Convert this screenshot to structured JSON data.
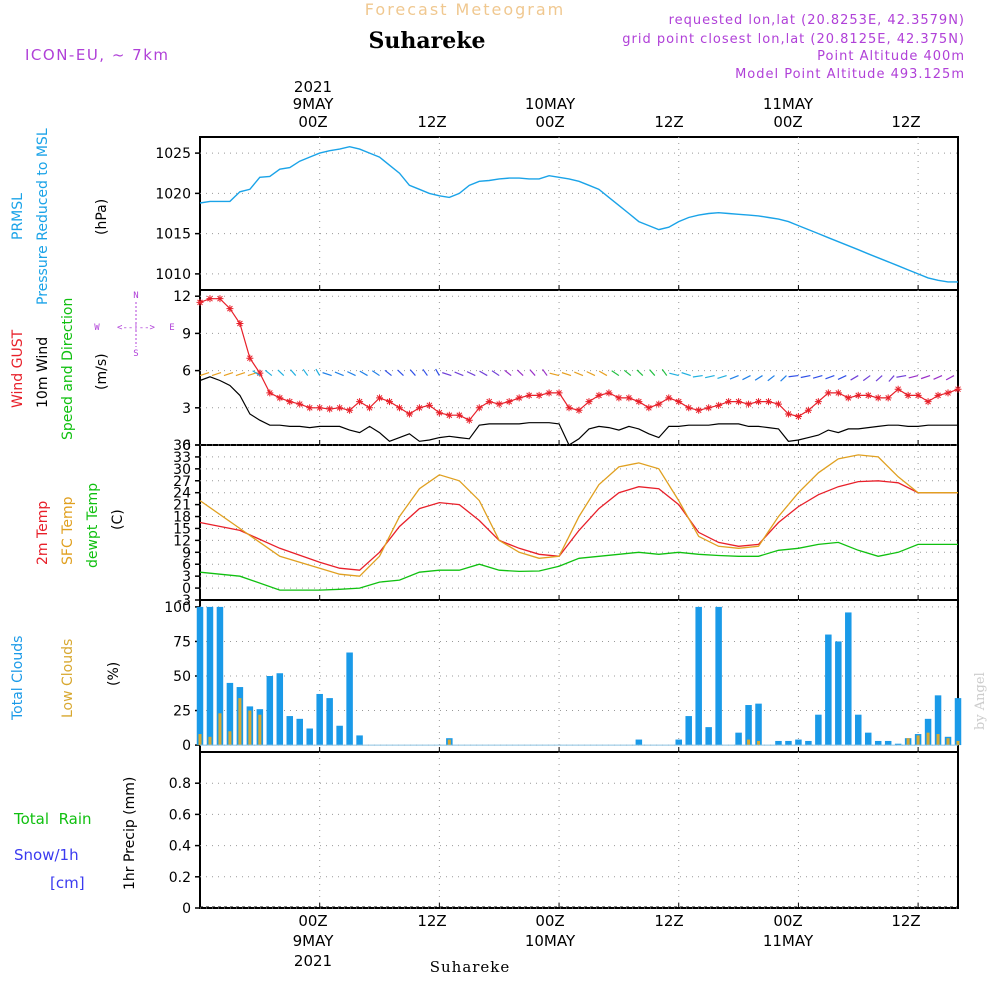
{
  "header": {
    "title": "Forecast Meteogram",
    "location": "Suhareke",
    "model": "ICON-EU, ~ 7km",
    "requested": "requested lon,lat (20.8253E, 42.3579N)",
    "grid": "grid point closest lon,lat (20.8125E, 42.375N)",
    "point_alt": "Point Altitude 400m",
    "model_alt": "Model Point Altitude 493.125m",
    "footer": "Suhareke",
    "credit": "by Angel"
  },
  "time_axis": {
    "year": "2021",
    "top_dates": [
      "9MAY",
      "10MAY",
      "11MAY"
    ],
    "top_hours": [
      "00Z",
      "12Z",
      "00Z",
      "12Z",
      "00Z",
      "12Z"
    ],
    "bottom_hours": [
      "00Z",
      "12Z",
      "00Z",
      "12Z",
      "00Z",
      "12Z"
    ],
    "bottom_dates": [
      "9MAY",
      "10MAY",
      "11MAY"
    ],
    "unit": "hours since 2021-05-08 12Z",
    "range": [
      0,
      76
    ]
  },
  "panels": {
    "pressure": {
      "label_a": "PRMSL",
      "label_b": "Pressure Reduced to MSL",
      "unit": "(hPa)"
    },
    "wind": {
      "label_gust": "Wind GUST",
      "label_10m": "10m Wind",
      "label_dir": "Speed and Direction",
      "unit": "(m/s)",
      "compass": {
        "n": "N",
        "s": "S",
        "w": "W",
        "e": "E",
        "arrow": "<--|-->"
      }
    },
    "temp": {
      "label_2m": "2m Temp",
      "label_sfc": "SFC Temp",
      "label_dew": "dewpt Temp",
      "unit": "(C)"
    },
    "clouds": {
      "label_total": "Total Clouds",
      "label_low": "Low Clouds",
      "unit": "(%)"
    },
    "precip": {
      "label_rain": "Total  Rain",
      "label_snow": "Snow/1h",
      "label_cm": "[cm]",
      "label_axis": "1hr Precip (mm)"
    }
  },
  "colors": {
    "pressure": "#1aa3e8",
    "gust": "#e8202a",
    "wind10m": "#000000",
    "temp2m": "#e8202a",
    "sfc": "#e0a020",
    "dew": "#10c010",
    "total_cloud": "#1a9ae8",
    "low_cloud": "#d8a830",
    "header_title": "#f0c890",
    "purple": "#b040d8",
    "rain": "#10c010",
    "snow": "#3a3af0"
  },
  "chart_data": [
    {
      "type": "line",
      "name": "pressure",
      "ylim": [
        1008,
        1027
      ],
      "yticks": [
        1010,
        1015,
        1020,
        1025
      ],
      "x": [
        0,
        1,
        2,
        3,
        4,
        5,
        6,
        7,
        8,
        9,
        10,
        11,
        12,
        13,
        14,
        15,
        16,
        17,
        18,
        19,
        20,
        21,
        22,
        23,
        24,
        25,
        26,
        27,
        28,
        29,
        30,
        31,
        32,
        33,
        34,
        35,
        36,
        37,
        38,
        39,
        40,
        41,
        42,
        43,
        44,
        45,
        46,
        47,
        48,
        49,
        50,
        51,
        52,
        53,
        54,
        55,
        56,
        57,
        58,
        59,
        60,
        61,
        62,
        63,
        64,
        65,
        66,
        67,
        68,
        69,
        70,
        71,
        72,
        73,
        74,
        75,
        76
      ],
      "series": [
        {
          "values": [
            1018.8,
            1019.0,
            1019.0,
            1019.0,
            1020.2,
            1020.5,
            1022.0,
            1022.1,
            1023.0,
            1023.2,
            1024.0,
            1024.5,
            1025.0,
            1025.3,
            1025.5,
            1025.8,
            1025.5,
            1025.0,
            1024.5,
            1023.5,
            1022.5,
            1021.0,
            1020.5,
            1020.0,
            1019.7,
            1019.5,
            1020.0,
            1021.0,
            1021.5,
            1021.6,
            1021.8,
            1021.9,
            1021.9,
            1021.8,
            1021.8,
            1022.2,
            1022.0,
            1021.8,
            1021.5,
            1021.0,
            1020.5,
            1019.5,
            1018.5,
            1017.5,
            1016.5,
            1016.0,
            1015.5,
            1015.8,
            1016.5,
            1017.0,
            1017.3,
            1017.5,
            1017.6,
            1017.5,
            1017.4,
            1017.3,
            1017.2,
            1017.0,
            1016.8,
            1016.5,
            1016.0,
            1015.5,
            1015.0,
            1014.5,
            1014.0,
            1013.5,
            1013.0,
            1012.5,
            1012.0,
            1011.5,
            1011.0,
            1010.5,
            1010.0,
            1009.5,
            1009.2,
            1009.0,
            1009.0
          ]
        }
      ]
    },
    {
      "type": "line",
      "name": "wind",
      "ylim": [
        0,
        12.5
      ],
      "yticks": [
        0,
        3,
        6,
        9,
        12
      ],
      "x": [
        0,
        1,
        2,
        3,
        4,
        5,
        6,
        7,
        8,
        9,
        10,
        11,
        12,
        13,
        14,
        15,
        16,
        17,
        18,
        19,
        20,
        21,
        22,
        23,
        24,
        25,
        26,
        27,
        28,
        29,
        30,
        31,
        32,
        33,
        34,
        35,
        36,
        37,
        38,
        39,
        40,
        41,
        42,
        43,
        44,
        45,
        46,
        47,
        48,
        49,
        50,
        51,
        52,
        53,
        54,
        55,
        56,
        57,
        58,
        59,
        60,
        61,
        62,
        63,
        64,
        65,
        66,
        67,
        68,
        69,
        70,
        71,
        72,
        73,
        74,
        75,
        76
      ],
      "series": [
        {
          "name": "Wind GUST",
          "values": [
            11.5,
            11.8,
            11.8,
            11.0,
            9.8,
            7.0,
            5.8,
            4.2,
            3.8,
            3.5,
            3.3,
            3.0,
            3.0,
            2.9,
            3.0,
            2.8,
            3.5,
            3.0,
            3.8,
            3.5,
            3.0,
            2.5,
            3.0,
            3.2,
            2.6,
            2.4,
            2.4,
            2.0,
            3.0,
            3.5,
            3.3,
            3.5,
            3.8,
            4.0,
            4.0,
            4.2,
            4.2,
            3.0,
            2.8,
            3.5,
            4.0,
            4.2,
            3.8,
            3.8,
            3.5,
            3.0,
            3.3,
            3.8,
            3.5,
            3.0,
            2.8,
            3.0,
            3.2,
            3.5,
            3.5,
            3.3,
            3.5,
            3.5,
            3.3,
            2.5,
            2.3,
            2.8,
            3.5,
            4.2,
            4.2,
            3.8,
            4.0,
            4.0,
            3.8,
            3.8,
            4.5,
            4.0,
            4.0,
            3.5,
            4.0,
            4.2,
            4.5
          ]
        },
        {
          "name": "10m Wind",
          "values": [
            5.2,
            5.5,
            5.2,
            4.8,
            4.0,
            2.5,
            2.0,
            1.6,
            1.6,
            1.5,
            1.5,
            1.4,
            1.5,
            1.5,
            1.5,
            1.2,
            1.0,
            1.5,
            1.0,
            0.3,
            0.6,
            0.9,
            0.3,
            0.4,
            0.6,
            0.7,
            0.6,
            0.5,
            1.6,
            1.7,
            1.7,
            1.7,
            1.7,
            1.8,
            1.8,
            1.8,
            1.7,
            0.0,
            0.5,
            1.3,
            1.5,
            1.4,
            1.2,
            1.5,
            1.3,
            0.9,
            0.6,
            1.5,
            1.5,
            1.6,
            1.6,
            1.6,
            1.7,
            1.7,
            1.7,
            1.5,
            1.5,
            1.4,
            1.3,
            0.3,
            0.4,
            0.6,
            0.8,
            1.2,
            1.0,
            1.3,
            1.3,
            1.4,
            1.5,
            1.6,
            1.6,
            1.5,
            1.5,
            1.6,
            1.6,
            1.6,
            1.6
          ]
        }
      ]
    },
    {
      "type": "line",
      "name": "temperature",
      "ylim": [
        -3,
        36
      ],
      "yticks": [
        -3,
        0,
        3,
        6,
        9,
        12,
        15,
        18,
        21,
        24,
        27,
        30,
        33,
        36
      ],
      "x": [
        0,
        4,
        8,
        12,
        14,
        16,
        18,
        20,
        22,
        24,
        26,
        28,
        30,
        32,
        34,
        36,
        38,
        40,
        42,
        44,
        46,
        48,
        50,
        52,
        54,
        56,
        58,
        60,
        62,
        64,
        66,
        68,
        70,
        72,
        74,
        76
      ],
      "series": [
        {
          "name": "2m Temp",
          "values": [
            16.5,
            14.5,
            10.0,
            6.5,
            5.0,
            4.5,
            9.0,
            15.5,
            20.0,
            21.5,
            21.0,
            17.0,
            12.0,
            10.0,
            8.5,
            8.0,
            14.5,
            20.0,
            24.0,
            25.5,
            25.0,
            21.0,
            14.0,
            11.5,
            10.5,
            11.0,
            16.5,
            20.5,
            23.5,
            25.5,
            26.8,
            27.0,
            26.5,
            24.0,
            24.0,
            24.0
          ]
        },
        {
          "name": "SFC Temp",
          "values": [
            22.0,
            15.0,
            8.0,
            5.0,
            3.5,
            3.0,
            8.0,
            18.0,
            25.0,
            28.5,
            27.0,
            22.0,
            12.0,
            9.0,
            7.5,
            8.0,
            18.0,
            26.0,
            30.5,
            31.5,
            30.0,
            22.0,
            13.0,
            10.5,
            10.0,
            10.5,
            18.0,
            24.0,
            29.0,
            32.5,
            33.5,
            33.0,
            28.0,
            24.0,
            24.0,
            24.0
          ]
        },
        {
          "name": "dewpt Temp",
          "values": [
            4.0,
            3.0,
            -0.5,
            -0.5,
            -0.3,
            0.0,
            1.5,
            2.0,
            4.0,
            4.5,
            4.5,
            6.0,
            4.5,
            4.2,
            4.3,
            5.5,
            7.5,
            8.0,
            8.5,
            9.0,
            8.5,
            9.0,
            8.5,
            8.2,
            8.0,
            8.0,
            9.5,
            10.0,
            11.0,
            11.5,
            9.5,
            8.0,
            9.0,
            11.0,
            11.0,
            11.0
          ]
        }
      ]
    },
    {
      "type": "bar",
      "name": "clouds",
      "ylim": [
        -5,
        105
      ],
      "yticks": [
        0,
        25,
        50,
        75,
        100
      ],
      "x": [
        0,
        1,
        2,
        3,
        4,
        5,
        6,
        7,
        8,
        9,
        10,
        11,
        12,
        13,
        14,
        15,
        16,
        17,
        18,
        19,
        20,
        21,
        22,
        23,
        24,
        25,
        26,
        27,
        28,
        29,
        30,
        31,
        32,
        33,
        34,
        35,
        36,
        37,
        38,
        39,
        40,
        41,
        42,
        43,
        44,
        45,
        46,
        47,
        48,
        49,
        50,
        51,
        52,
        53,
        54,
        55,
        56,
        57,
        58,
        59,
        60,
        61,
        62,
        63,
        64,
        65,
        66,
        67,
        68,
        69,
        70,
        71,
        72,
        73,
        74,
        75,
        76
      ],
      "series": [
        {
          "name": "Total Clouds",
          "values": [
            100,
            100,
            100,
            45,
            42,
            28,
            26,
            50,
            52,
            21,
            19,
            12,
            37,
            34,
            14,
            67,
            7,
            0,
            0,
            0,
            0,
            0,
            0,
            0,
            0,
            5,
            0,
            0,
            0,
            0,
            0,
            0,
            0,
            0,
            0,
            0,
            0,
            0,
            0,
            0,
            0,
            0,
            0,
            0,
            4,
            0,
            0,
            0,
            4,
            21,
            100,
            13,
            100,
            0,
            9,
            29,
            30,
            0,
            3,
            3,
            4,
            3,
            22,
            80,
            75,
            96,
            22,
            9,
            3,
            3,
            1,
            5,
            8,
            19,
            36,
            6,
            34
          ]
        },
        {
          "name": "Low Clouds",
          "values": [
            8,
            6,
            23,
            10,
            34,
            25,
            22,
            0,
            0,
            0,
            0,
            0,
            0,
            0,
            0,
            0,
            0,
            0,
            0,
            0,
            0,
            0,
            0,
            0,
            0,
            4,
            0,
            0,
            0,
            0,
            0,
            0,
            0,
            0,
            0,
            0,
            0,
            0,
            0,
            0,
            0,
            0,
            0,
            0,
            0,
            0,
            0,
            0,
            0,
            0,
            0,
            0,
            0,
            0,
            0,
            4,
            3,
            0,
            0,
            0,
            0,
            0,
            0,
            0,
            0,
            0,
            0,
            0,
            0,
            0,
            0,
            5,
            7,
            9,
            8,
            5,
            3
          ]
        }
      ]
    },
    {
      "type": "bar",
      "name": "precipitation",
      "ylim": [
        0,
        1.0
      ],
      "yticks": [
        0,
        0.2,
        0.4,
        0.6,
        0.8
      ],
      "x": [],
      "series": [
        {
          "name": "Total Rain",
          "values": []
        }
      ]
    }
  ]
}
